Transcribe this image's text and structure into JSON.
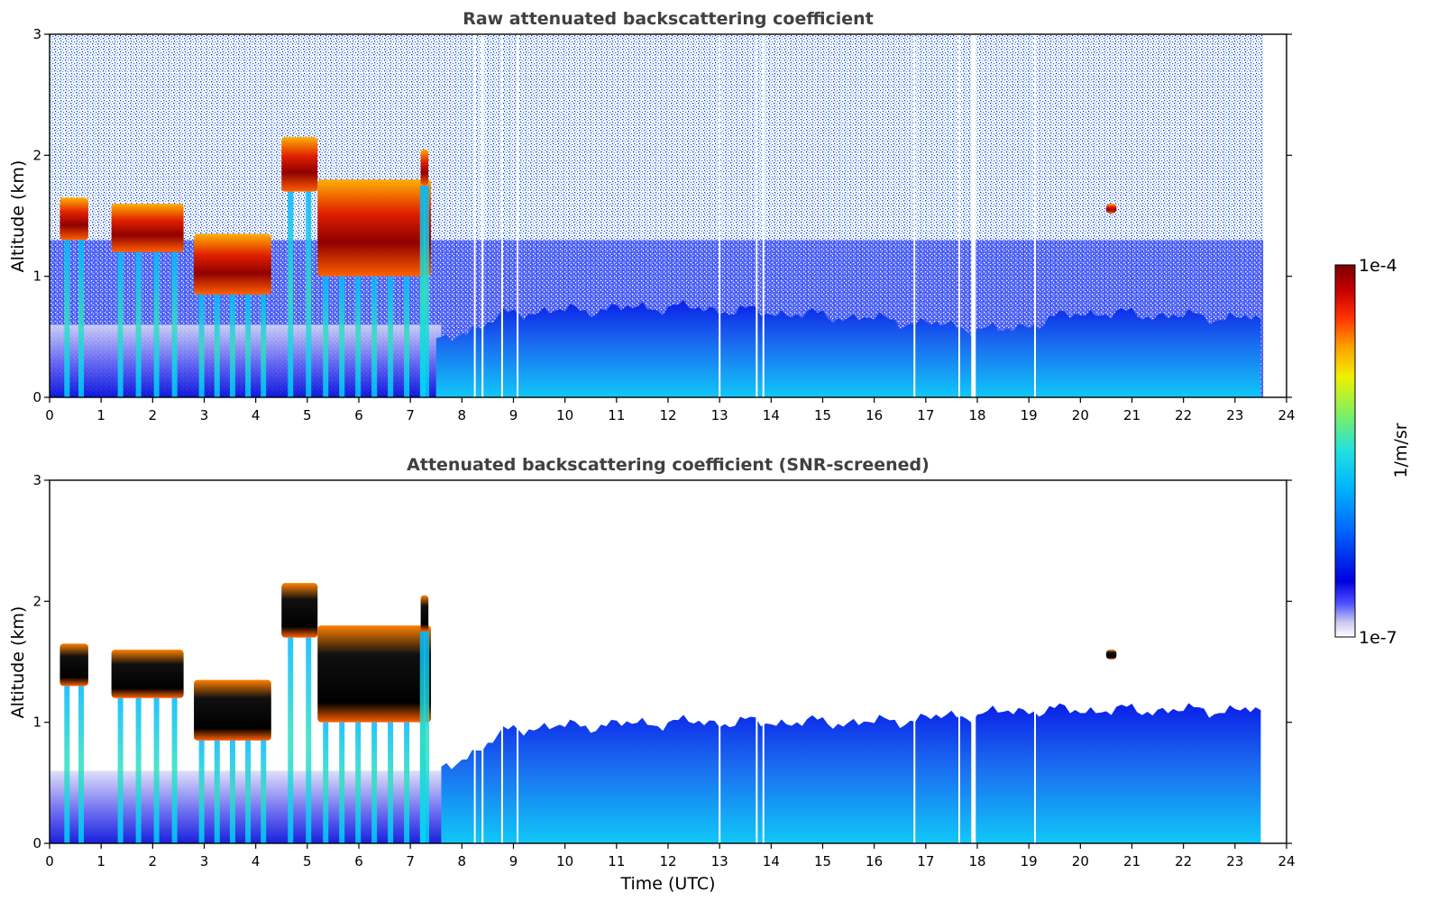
{
  "chart_data": [
    {
      "type": "heatmap",
      "title": "Raw attenuated backscattering coefficient",
      "xlabel": "",
      "ylabel": "Altitude (km)",
      "xlim": [
        0,
        24
      ],
      "ylim": [
        0,
        3
      ],
      "x_ticks": [
        "0",
        "1",
        "2",
        "3",
        "4",
        "5",
        "6",
        "7",
        "8",
        "9",
        "10",
        "11",
        "12",
        "13",
        "14",
        "15",
        "16",
        "17",
        "18",
        "19",
        "20",
        "21",
        "22",
        "23",
        "24"
      ],
      "y_ticks": [
        "0",
        "1",
        "2",
        "3"
      ],
      "data_end_time_utc": 23.55,
      "data_gaps_utc": [
        8.25,
        8.4,
        8.78,
        9.08,
        13.0,
        13.72,
        13.85,
        16.78,
        17.65,
        17.9,
        19.12
      ],
      "cloud_layers": [
        {
          "t_start": 0.2,
          "t_end": 0.75,
          "alt_bottom": 1.3,
          "alt_top": 1.65
        },
        {
          "t_start": 1.2,
          "t_end": 2.6,
          "alt_bottom": 1.2,
          "alt_top": 1.6
        },
        {
          "t_start": 2.8,
          "t_end": 4.3,
          "alt_bottom": 0.85,
          "alt_top": 1.35
        },
        {
          "t_start": 4.5,
          "t_end": 5.2,
          "alt_bottom": 1.7,
          "alt_top": 2.15
        },
        {
          "t_start": 5.2,
          "t_end": 7.4,
          "alt_bottom": 1.0,
          "alt_top": 1.8
        },
        {
          "t_start": 7.2,
          "t_end": 7.35,
          "alt_bottom": 1.75,
          "alt_top": 2.05
        },
        {
          "t_start": 20.5,
          "t_end": 20.7,
          "alt_bottom": 1.52,
          "alt_top": 1.6
        }
      ],
      "boundary_layer_top_km": [
        {
          "t": 7.5,
          "alt": 0.45
        },
        {
          "t": 9.0,
          "alt": 0.7
        },
        {
          "t": 12.0,
          "alt": 0.75
        },
        {
          "t": 16.0,
          "alt": 0.65
        },
        {
          "t": 18.5,
          "alt": 0.55
        },
        {
          "t": 20.0,
          "alt": 0.7
        },
        {
          "t": 23.5,
          "alt": 0.65
        }
      ]
    },
    {
      "type": "heatmap",
      "title": "Attenuated backscattering coefficient (SNR-screened)",
      "xlabel": "Time (UTC)",
      "ylabel": "Altitude (km)",
      "xlim": [
        0,
        24
      ],
      "ylim": [
        0,
        3
      ],
      "x_ticks": [
        "0",
        "1",
        "2",
        "3",
        "4",
        "5",
        "6",
        "7",
        "8",
        "9",
        "10",
        "11",
        "12",
        "13",
        "14",
        "15",
        "16",
        "17",
        "18",
        "19",
        "20",
        "21",
        "22",
        "23",
        "24"
      ],
      "y_ticks": [
        "0",
        "1",
        "2",
        "3"
      ],
      "data_end_time_utc": 23.55,
      "screened_top_km": [
        {
          "t": 7.6,
          "alt": 0.6
        },
        {
          "t": 9.0,
          "alt": 0.95
        },
        {
          "t": 12.0,
          "alt": 1.0
        },
        {
          "t": 16.0,
          "alt": 1.0
        },
        {
          "t": 19.0,
          "alt": 1.1
        },
        {
          "t": 23.5,
          "alt": 1.1
        }
      ]
    }
  ],
  "colorbar": {
    "label": "1/m/sr",
    "max_label": "1e-4",
    "min_label": "1e-7",
    "scale": "log",
    "colormap": [
      "#ffffff",
      "#c8c8f0",
      "#3030ff",
      "#0000e0",
      "#0080ff",
      "#00c8ff",
      "#40e0c0",
      "#a0f040",
      "#ffff00",
      "#ff9000",
      "#ff2000",
      "#c00000",
      "#800000"
    ]
  }
}
